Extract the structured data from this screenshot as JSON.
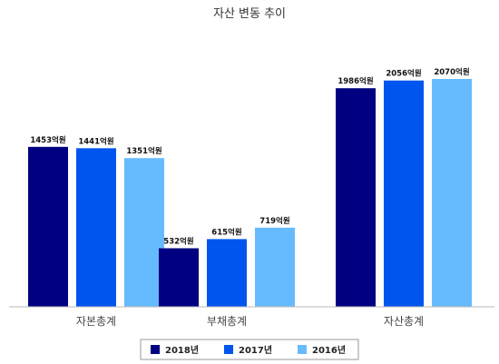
{
  "chart_data": {
    "type": "bar",
    "title": "자산 변동 추이",
    "categories": [
      "자본총계",
      "부채총계",
      "자산총계"
    ],
    "series": [
      {
        "name": "2018년",
        "values": [
          1453,
          532,
          1986
        ],
        "labels": [
          "1453억원",
          "532억원",
          "1986억원"
        ],
        "color": "#000080"
      },
      {
        "name": "2017년",
        "values": [
          1441,
          615,
          2056
        ],
        "labels": [
          "1441억원",
          "615억원",
          "2056억원"
        ],
        "color": "#0055ee"
      },
      {
        "name": "2016년",
        "values": [
          1351,
          719,
          2070
        ],
        "labels": [
          "1351억원",
          "719억원",
          "2070억원"
        ],
        "color": "#66bbff"
      }
    ],
    "ylim": [
      0,
      2300
    ],
    "grid": false,
    "legend_position": "bottom"
  }
}
